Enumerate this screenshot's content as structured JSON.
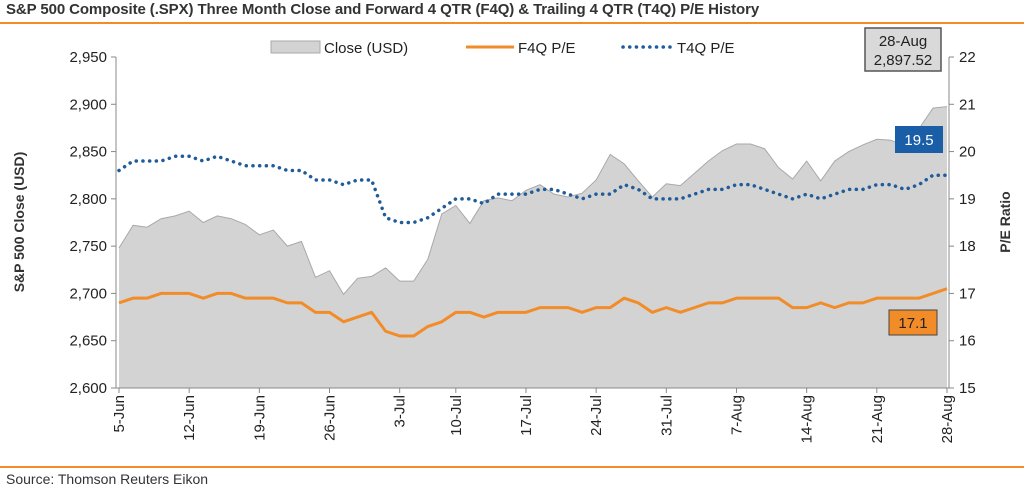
{
  "title": "S&P 500 Composite (.SPX) Three Month Close and Forward 4 QTR (F4Q) & Trailing 4 QTR (T4Q) P/E History",
  "source": "Source: Thomson Reuters Eikon",
  "colors": {
    "rule": "#f28c28",
    "close_fill": "#d3d3d3",
    "close_stroke": "#a9a9a9",
    "f4q": "#f28c28",
    "t4q": "#1f5c99",
    "t4q_callout": "#1a5ea8",
    "f4q_callout": "#f28c28",
    "axis": "#888888"
  },
  "callouts": {
    "last_date": "28-Aug",
    "last_close": "2,897.52",
    "t4q_last": "19.5",
    "f4q_last": "17.1"
  },
  "chart_data": {
    "type": "area",
    "ylabel": "S&P 500 Close (USD)",
    "y2label": "P/E Ratio",
    "ylim": [
      2600,
      2950
    ],
    "y_ticks": [
      "2,600",
      "2,650",
      "2,700",
      "2,750",
      "2,800",
      "2,850",
      "2,900",
      "2,950"
    ],
    "y2lim": [
      15,
      22
    ],
    "y2_ticks": [
      "15",
      "16",
      "17",
      "18",
      "19",
      "20",
      "21",
      "22"
    ],
    "x_tick_labels": [
      "5-Jun",
      "12-Jun",
      "19-Jun",
      "26-Jun",
      "3-Jul",
      "10-Jul",
      "17-Jul",
      "24-Jul",
      "31-Jul",
      "7-Aug",
      "14-Aug",
      "21-Aug",
      "28-Aug"
    ],
    "legend": [
      "Close (USD)",
      "F4Q P/E",
      "T4Q P/E"
    ],
    "legend_position": "top",
    "dates": [
      "5-Jun",
      "6-Jun",
      "7-Jun",
      "8-Jun",
      "11-Jun",
      "12-Jun",
      "13-Jun",
      "14-Jun",
      "15-Jun",
      "18-Jun",
      "19-Jun",
      "20-Jun",
      "21-Jun",
      "22-Jun",
      "25-Jun",
      "26-Jun",
      "27-Jun",
      "28-Jun",
      "29-Jun",
      "2-Jul",
      "3-Jul",
      "5-Jul",
      "6-Jul",
      "9-Jul",
      "10-Jul",
      "11-Jul",
      "12-Jul",
      "13-Jul",
      "16-Jul",
      "17-Jul",
      "18-Jul",
      "19-Jul",
      "20-Jul",
      "23-Jul",
      "24-Jul",
      "25-Jul",
      "26-Jul",
      "27-Jul",
      "30-Jul",
      "31-Jul",
      "1-Aug",
      "2-Aug",
      "3-Aug",
      "6-Aug",
      "7-Aug",
      "8-Aug",
      "9-Aug",
      "10-Aug",
      "13-Aug",
      "14-Aug",
      "15-Aug",
      "16-Aug",
      "17-Aug",
      "20-Aug",
      "21-Aug",
      "22-Aug",
      "23-Aug",
      "24-Aug",
      "27-Aug",
      "28-Aug"
    ],
    "series": [
      {
        "name": "Close (USD)",
        "axis": "left",
        "values": [
          2748,
          2772,
          2770,
          2779,
          2782,
          2787,
          2775,
          2782,
          2779,
          2773,
          2762,
          2767,
          2750,
          2755,
          2717,
          2724,
          2699,
          2716,
          2718,
          2727,
          2713,
          2713,
          2736,
          2784,
          2793,
          2774,
          2798,
          2801,
          2798,
          2809,
          2815,
          2805,
          2802,
          2806,
          2820,
          2847,
          2837,
          2819,
          2802,
          2816,
          2814,
          2827,
          2840,
          2851,
          2858,
          2858,
          2853,
          2833,
          2821,
          2840,
          2819,
          2840,
          2850,
          2857,
          2863,
          2862,
          2856,
          2874,
          2896,
          2897.52
        ]
      },
      {
        "name": "F4Q P/E",
        "axis": "right",
        "values": [
          16.8,
          16.9,
          16.9,
          17.0,
          17.0,
          17.0,
          16.9,
          17.0,
          17.0,
          16.9,
          16.9,
          16.9,
          16.8,
          16.8,
          16.6,
          16.6,
          16.4,
          16.5,
          16.6,
          16.2,
          16.1,
          16.1,
          16.3,
          16.4,
          16.6,
          16.6,
          16.5,
          16.6,
          16.6,
          16.6,
          16.7,
          16.7,
          16.7,
          16.6,
          16.7,
          16.7,
          16.9,
          16.8,
          16.6,
          16.7,
          16.6,
          16.7,
          16.8,
          16.8,
          16.9,
          16.9,
          16.9,
          16.9,
          16.7,
          16.7,
          16.8,
          16.7,
          16.8,
          16.8,
          16.9,
          16.9,
          16.9,
          16.9,
          17.0,
          17.1
        ]
      },
      {
        "name": "T4Q P/E",
        "axis": "right",
        "values": [
          19.6,
          19.8,
          19.8,
          19.8,
          19.9,
          19.9,
          19.8,
          19.9,
          19.8,
          19.7,
          19.7,
          19.7,
          19.6,
          19.6,
          19.4,
          19.4,
          19.3,
          19.4,
          19.4,
          18.6,
          18.5,
          18.5,
          18.6,
          18.8,
          19.0,
          19.0,
          18.9,
          19.1,
          19.1,
          19.1,
          19.2,
          19.2,
          19.1,
          19.0,
          19.1,
          19.1,
          19.3,
          19.2,
          19.0,
          19.0,
          19.0,
          19.1,
          19.2,
          19.2,
          19.3,
          19.3,
          19.2,
          19.1,
          19.0,
          19.1,
          19.0,
          19.1,
          19.2,
          19.2,
          19.3,
          19.3,
          19.2,
          19.3,
          19.5,
          19.5
        ]
      }
    ]
  }
}
